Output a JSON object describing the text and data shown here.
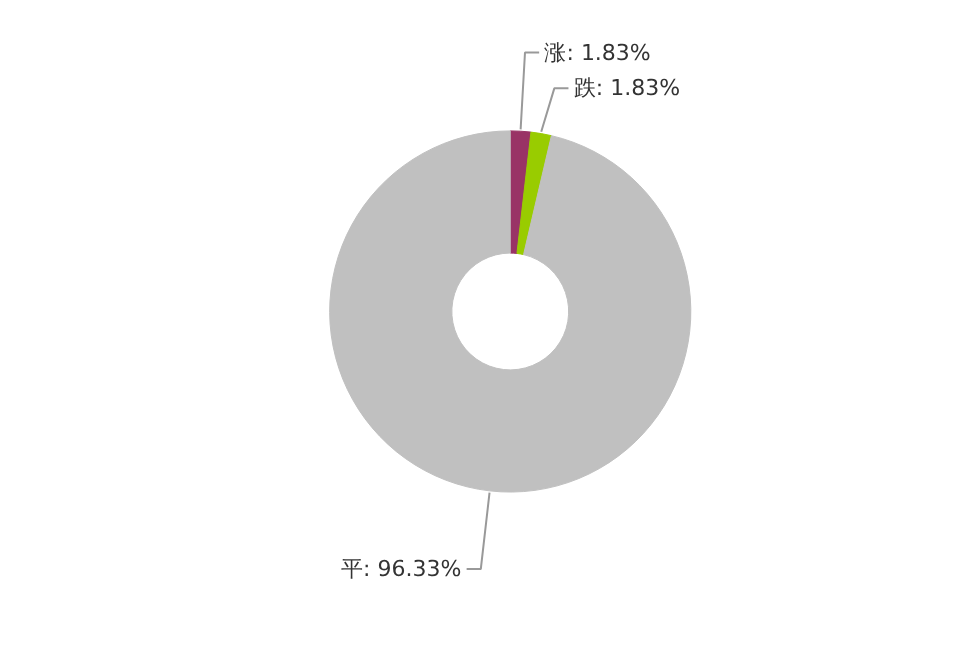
{
  "chart_data": {
    "type": "donut",
    "categories": [
      "涨",
      "跌",
      "平"
    ],
    "values": [
      1.83,
      1.83,
      96.33
    ],
    "colors": [
      "#993366",
      "#99cc00",
      "#c0c0c0"
    ],
    "value_labels": [
      "1.83%",
      "1.83%",
      "96.33%"
    ]
  }
}
